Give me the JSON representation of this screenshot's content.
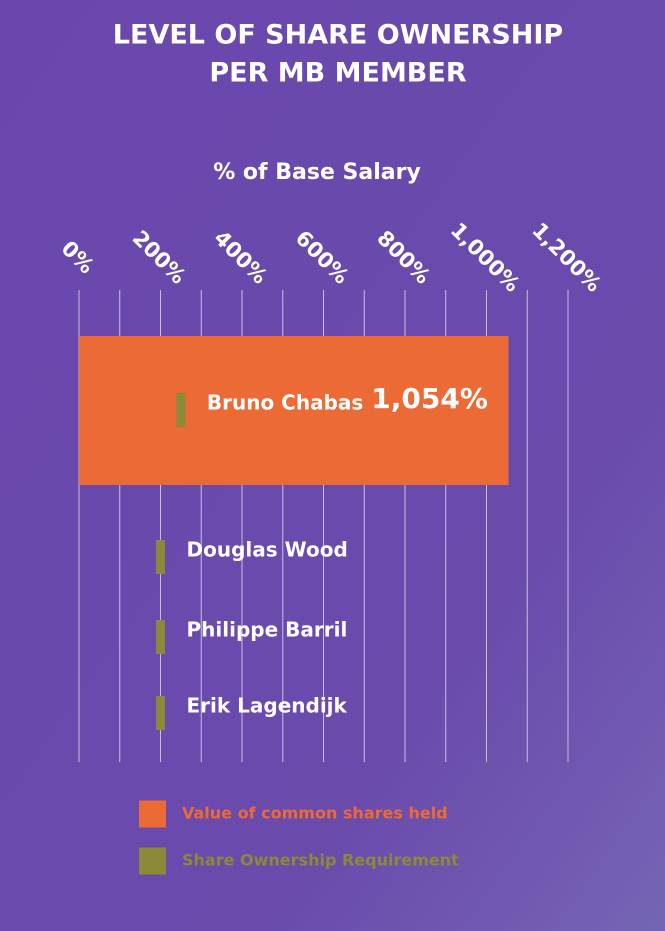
{
  "chart_data": {
    "type": "bar",
    "orientation": "horizontal",
    "title": [
      "LEVEL OF SHARE OWNERSHIP",
      "PER MB MEMBER"
    ],
    "x_label": "% of Base Salary",
    "categories": [
      "Bruno Chabas",
      "Douglas Wood",
      "Philippe Barril",
      "Erik Lagendijk"
    ],
    "series": [
      {
        "name": "Value of common shares held",
        "color": "#ec6a36",
        "values": [
          1054,
          null,
          null,
          null
        ],
        "value_labels": [
          "1,054%",
          null,
          null,
          null
        ]
      },
      {
        "name": "Share Ownership Requirement",
        "color": "#8c8a38",
        "values": [
          250,
          200,
          200,
          200
        ],
        "marker": "tick"
      }
    ],
    "xlim": [
      0,
      1200
    ],
    "xticks": [
      {
        "value": 0,
        "label": "0%"
      },
      {
        "value": 200,
        "label": "200%"
      },
      {
        "value": 400,
        "label": "400%"
      },
      {
        "value": 600,
        "label": "600%"
      },
      {
        "value": 800,
        "label": "800%"
      },
      {
        "value": 1000,
        "label": "1,000%"
      },
      {
        "value": 1200,
        "label": "1,200%"
      }
    ],
    "minor_xticks": [
      100,
      300,
      500,
      700,
      900,
      1100
    ],
    "grid": true,
    "legend": "bottom"
  }
}
